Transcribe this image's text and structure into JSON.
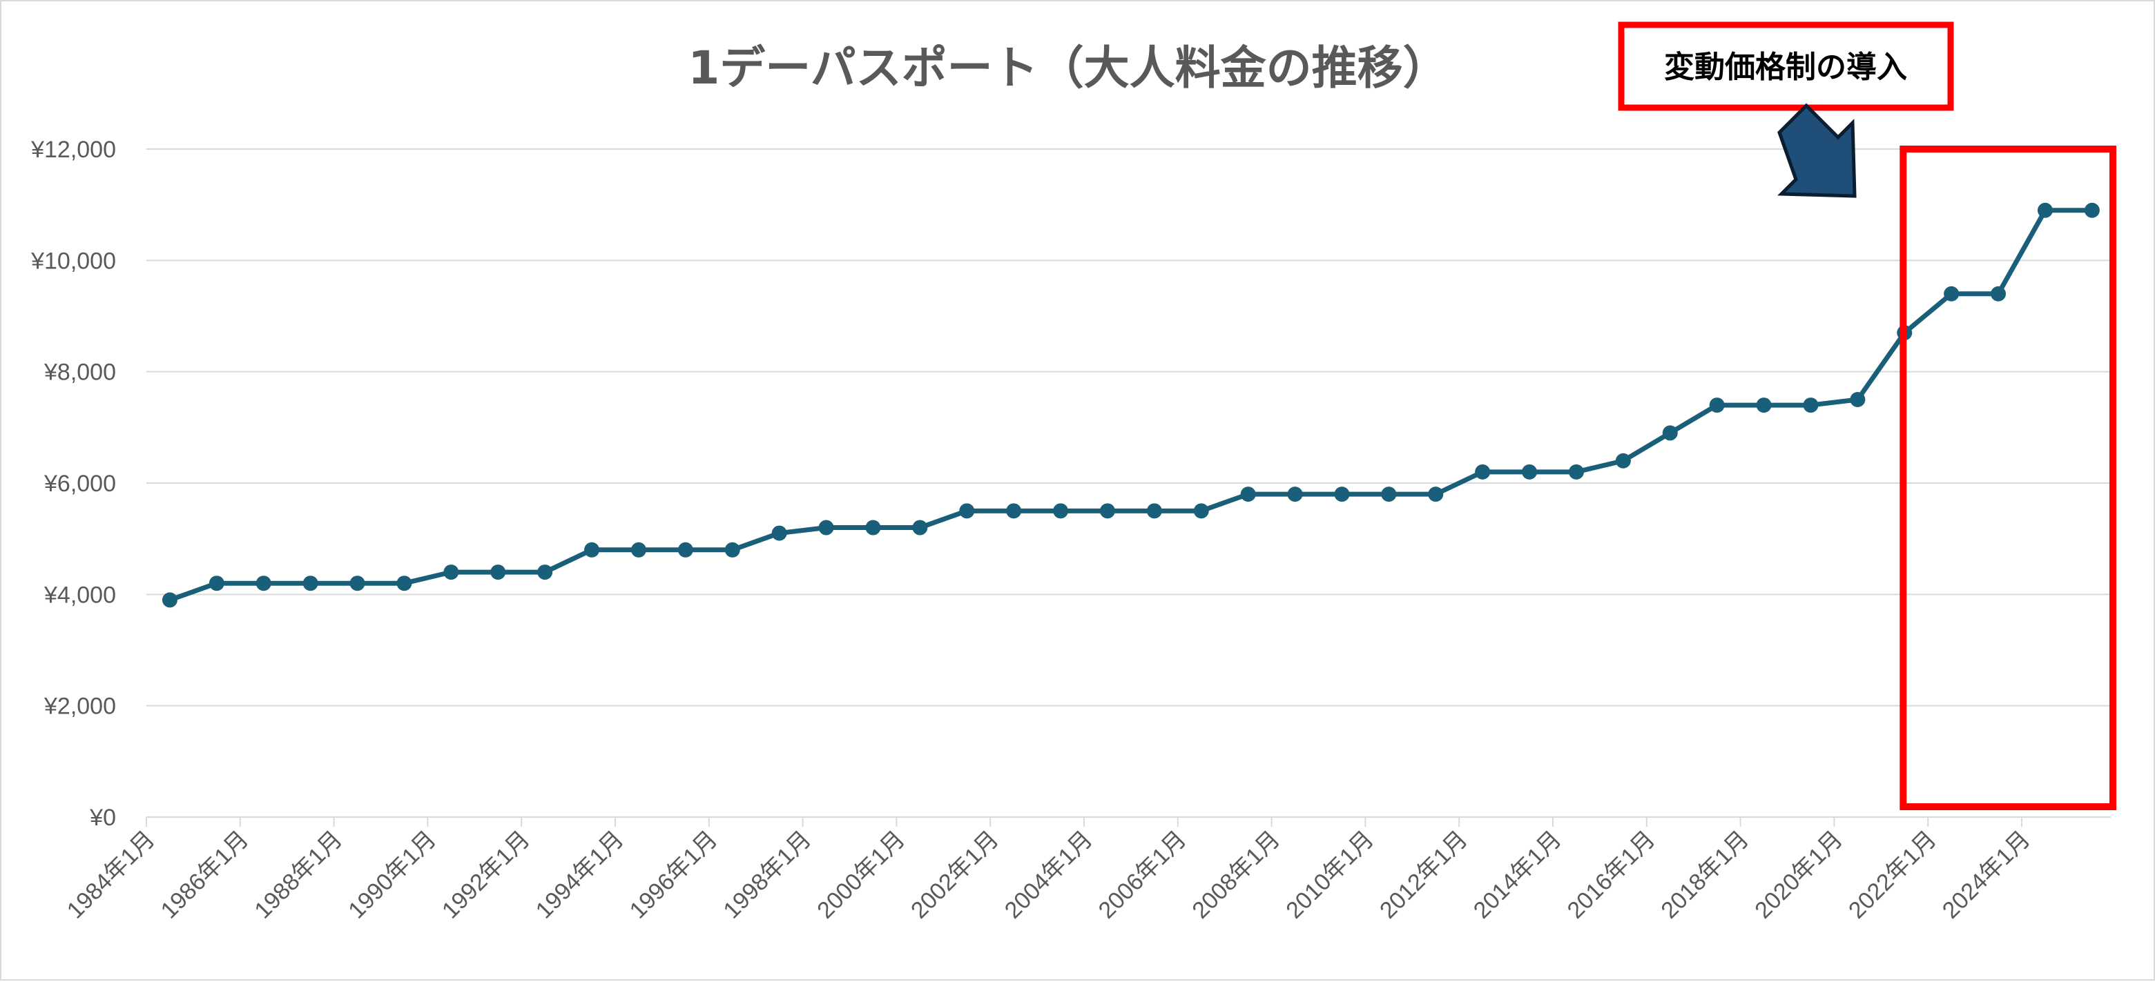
{
  "colors": {
    "line": "#1a5f7a",
    "grid": "#d9d9d9",
    "axis_text": "#595959",
    "title": "#595959",
    "highlight": "#ff0000",
    "arrow_fill": "#1f4e79",
    "arrow_stroke": "#0a1e30"
  },
  "chart_data": {
    "type": "line",
    "title": "1デーパスポート（大人料金の推移）",
    "xlabel": "",
    "ylabel": "",
    "ylim": [
      0,
      12000
    ],
    "yticks": [
      "¥0",
      "¥2,000",
      "¥4,000",
      "¥6,000",
      "¥8,000",
      "¥10,000",
      "¥12,000"
    ],
    "xticks": [
      "1984年1月",
      "1986年1月",
      "1988年1月",
      "1990年1月",
      "1992年1月",
      "1994年1月",
      "1996年1月",
      "1998年1月",
      "2000年1月",
      "2002年1月",
      "2004年1月",
      "2006年1月",
      "2008年1月",
      "2010年1月",
      "2012年1月",
      "2014年1月",
      "2016年1月",
      "2018年1月",
      "2020年1月",
      "2022年1月",
      "2024年1月"
    ],
    "grid": true,
    "legend": "none",
    "x_range": [
      1984.0,
      2025.9
    ],
    "series": [
      {
        "x": [
          1984.5,
          1985.5,
          1986.5,
          1987.5,
          1988.5,
          1989.5,
          1990.5,
          1991.5,
          1992.5,
          1993.5,
          1994.5,
          1995.5,
          1996.5,
          1997.5,
          1998.5,
          1999.5,
          2000.5,
          2001.5,
          2002.5,
          2003.5,
          2004.5,
          2005.5,
          2006.5,
          2007.5,
          2008.5,
          2009.5,
          2010.5,
          2011.5,
          2012.5,
          2013.5,
          2014.5,
          2015.5,
          2016.5,
          2017.5,
          2018.5,
          2019.5,
          2020.5,
          2021.5,
          2022.5,
          2023.5,
          2024.5,
          2025.5
        ],
        "values": [
          3900,
          4200,
          4200,
          4200,
          4200,
          4200,
          4400,
          4400,
          4400,
          4800,
          4800,
          4800,
          4800,
          5100,
          5200,
          5200,
          5200,
          5500,
          5500,
          5500,
          5500,
          5500,
          5500,
          5800,
          5800,
          5800,
          5800,
          5800,
          6200,
          6200,
          6200,
          6400,
          6900,
          7400,
          7400,
          7400,
          7500,
          8700,
          9400,
          9400,
          10900,
          10900
        ]
      }
    ],
    "annotations": [
      {
        "text": "変動価格制の導入",
        "highlight_from": 2021.0
      }
    ]
  }
}
